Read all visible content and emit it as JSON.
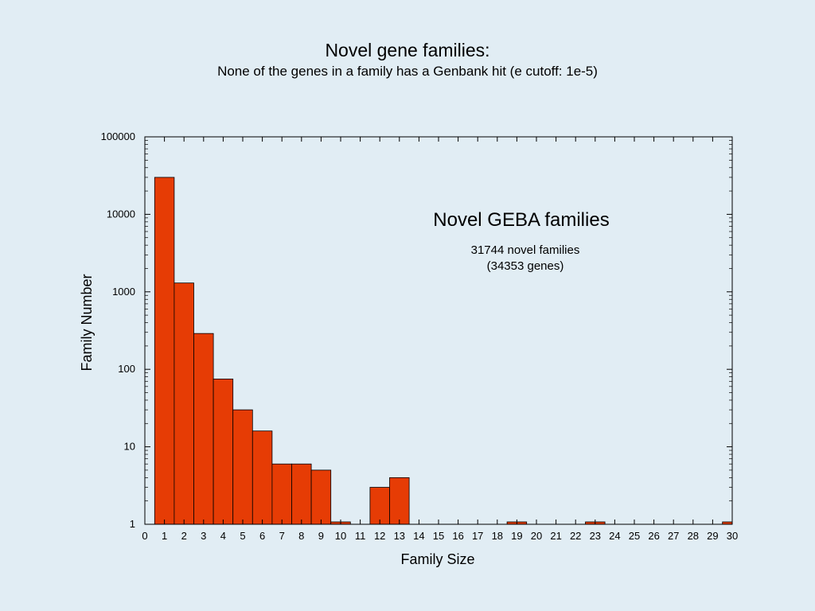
{
  "slide": {
    "title": "Novel gene families:",
    "subtitle": "None of the genes in a family has a Genbank hit (e cutoff: 1e-5)"
  },
  "chart_data": {
    "type": "bar",
    "xlabel": "Family Size",
    "ylabel": "Family Number",
    "y_scale": "log",
    "ylim": [
      1,
      100000
    ],
    "xlim": [
      0,
      30
    ],
    "y_ticks": [
      "1",
      "10",
      "100",
      "1000",
      "10000",
      "100000"
    ],
    "x_ticks": [
      "0",
      "1",
      "2",
      "3",
      "4",
      "5",
      "6",
      "7",
      "8",
      "9",
      "10",
      "11",
      "12",
      "13",
      "14",
      "15",
      "16",
      "17",
      "18",
      "19",
      "20",
      "21",
      "22",
      "23",
      "24",
      "25",
      "26",
      "27",
      "28",
      "29",
      "30"
    ],
    "categories": [
      1,
      2,
      3,
      4,
      5,
      6,
      7,
      8,
      9,
      10,
      12,
      13,
      19,
      23,
      30
    ],
    "values": [
      30000,
      1300,
      290,
      75,
      30,
      16,
      6,
      6,
      5,
      1,
      3,
      4,
      1,
      1,
      1
    ],
    "bar_color": "#e63c05",
    "annotation": {
      "title": "Novel GEBA families",
      "line1": "31744 novel families",
      "line2": "(34353 genes)"
    }
  }
}
